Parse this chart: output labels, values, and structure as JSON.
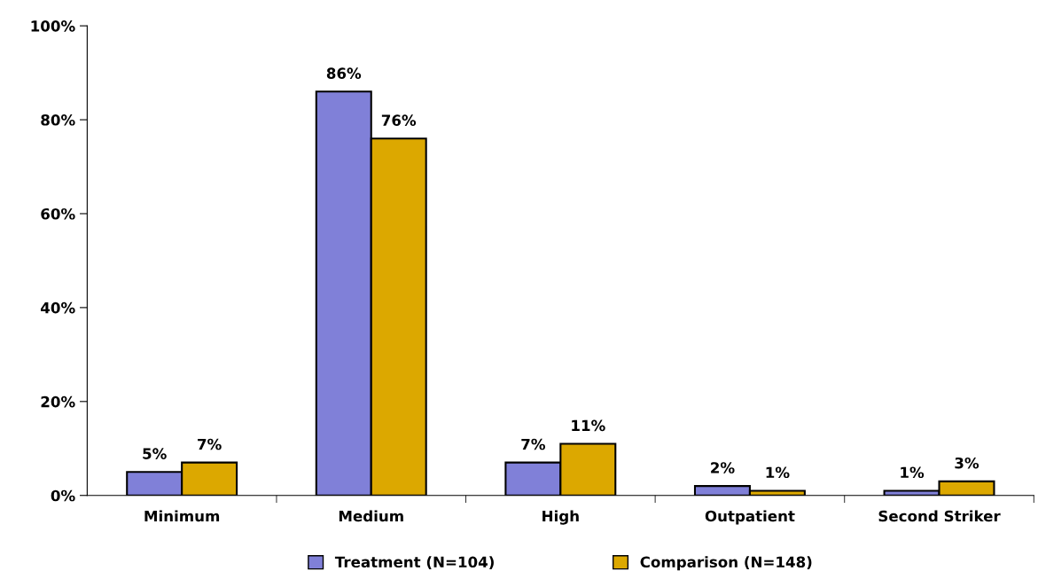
{
  "chart_data": {
    "type": "bar",
    "categories": [
      "Minimum",
      "Medium",
      "High",
      "Outpatient",
      "Second Striker"
    ],
    "series": [
      {
        "name": "Treatment (N=104)",
        "color": "#8080d8",
        "values": [
          5,
          86,
          7,
          2,
          1
        ],
        "value_labels": [
          "5%",
          "86%",
          "7%",
          "2%",
          "1%"
        ]
      },
      {
        "name": "Comparison (N=148)",
        "color": "#dca800",
        "values": [
          7,
          76,
          11,
          1,
          3
        ],
        "value_labels": [
          "7%",
          "76%",
          "11%",
          "1%",
          "3%"
        ]
      }
    ],
    "ylim": [
      0,
      100
    ],
    "yticks": [
      {
        "value": 0,
        "label": "0%"
      },
      {
        "value": 20,
        "label": "20%"
      },
      {
        "value": 40,
        "label": "40%"
      },
      {
        "value": 60,
        "label": "60%"
      },
      {
        "value": 80,
        "label": "80%"
      },
      {
        "value": 100,
        "label": "100%"
      }
    ],
    "grid": false,
    "legend": "bottom"
  }
}
